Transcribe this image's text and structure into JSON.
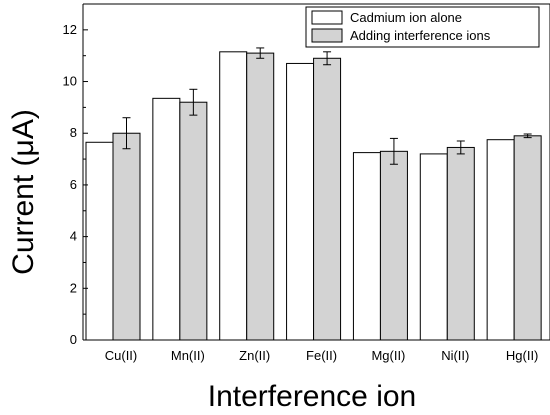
{
  "chart_data": {
    "type": "bar",
    "xlabel": "Interference ion",
    "ylabel": "Current (μA)",
    "ylim": [
      0,
      13
    ],
    "yticks": [
      0,
      2,
      4,
      6,
      8,
      10,
      12
    ],
    "grid": false,
    "legend_position": "top-right",
    "categories": [
      "Cu(II)",
      "Mn(II)",
      "Zn(II)",
      "Fe(II)",
      "Mg(II)",
      "Ni(II)",
      "Hg(II)"
    ],
    "series": [
      {
        "name": "Cadmium ion alone",
        "color": "#ffffff",
        "values": [
          7.65,
          9.35,
          11.15,
          10.7,
          7.25,
          7.2,
          7.75
        ]
      },
      {
        "name": "Adding interference ions",
        "color": "#d3d3d3",
        "values": [
          8.0,
          9.2,
          11.1,
          10.9,
          7.3,
          7.45,
          7.9
        ],
        "errors": [
          0.6,
          0.5,
          0.2,
          0.25,
          0.5,
          0.25,
          0.07
        ]
      }
    ]
  }
}
